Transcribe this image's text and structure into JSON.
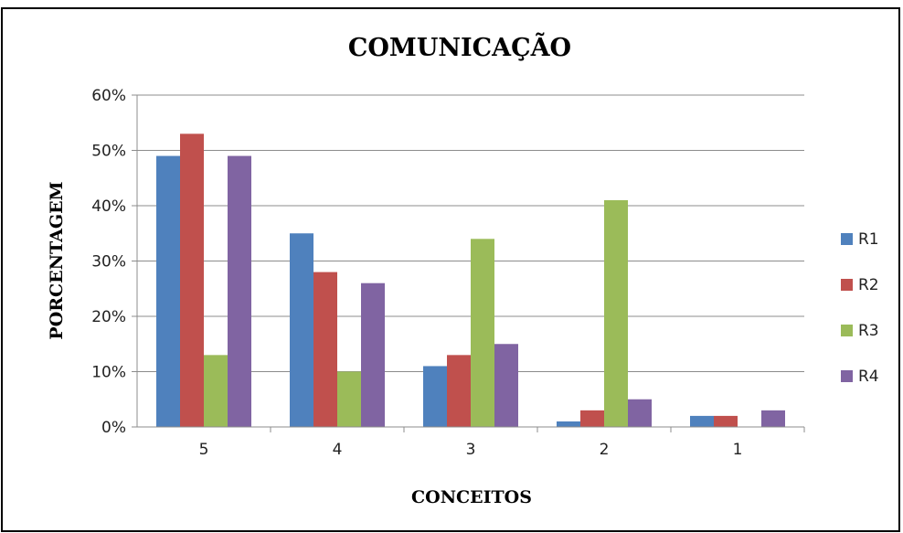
{
  "chart_data": {
    "type": "bar",
    "title": "COMUNICAÇÃO",
    "xlabel": "CONCEITOS",
    "ylabel": "PORCENTAGEM",
    "categories": [
      "5",
      "4",
      "3",
      "2",
      "1"
    ],
    "ylim": [
      0,
      0.6
    ],
    "yticks": [
      "0%",
      "10%",
      "20%",
      "30%",
      "40%",
      "50%",
      "60%"
    ],
    "grid": true,
    "legend_position": "right",
    "series": [
      {
        "name": "R1",
        "color": "#4f81bd",
        "values": [
          0.49,
          0.35,
          0.11,
          0.01,
          0.02
        ]
      },
      {
        "name": "R2",
        "color": "#c0504d",
        "values": [
          0.53,
          0.28,
          0.13,
          0.03,
          0.02
        ]
      },
      {
        "name": "R3",
        "color": "#9bbb59",
        "values": [
          0.13,
          0.1,
          0.34,
          0.41,
          0.0
        ]
      },
      {
        "name": "R4",
        "color": "#8064a2",
        "values": [
          0.49,
          0.26,
          0.15,
          0.05,
          0.03
        ]
      }
    ]
  }
}
